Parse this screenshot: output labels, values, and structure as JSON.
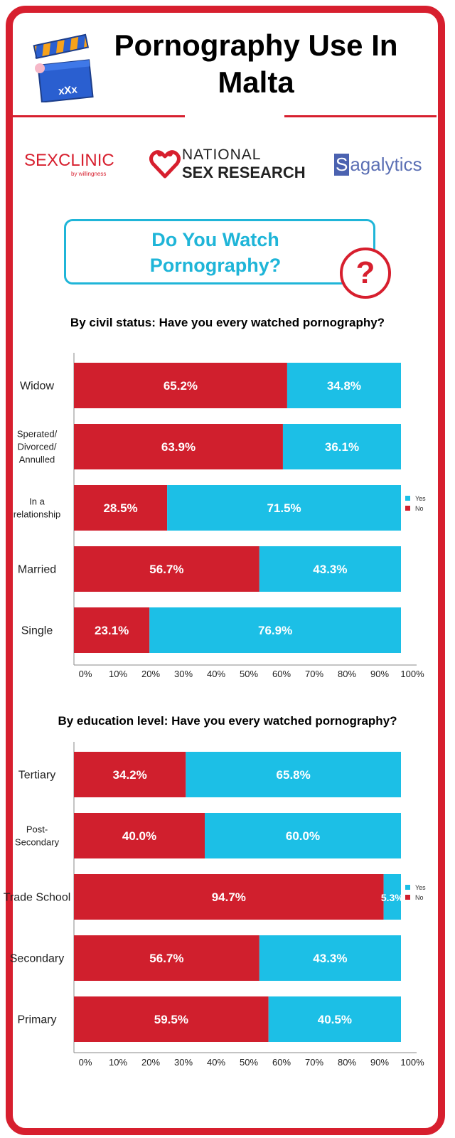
{
  "header": {
    "title_line1": "Pornography Use In",
    "title_line2": "Malta",
    "clapper_text": "xXx"
  },
  "logos": {
    "sexclinic": "SEXCLINIC",
    "sexclinic_by": "by willingness",
    "nsr_line1": "NATIONAL",
    "nsr_line2": "SEX RESEARCH",
    "sagalytics_s": "S",
    "sagalytics_rest": "agalytics"
  },
  "question": {
    "line1": "Do You Watch",
    "line2": "Pornography?",
    "mark": "?"
  },
  "colors": {
    "no": "#d01f2d",
    "yes": "#1cbfe6",
    "accent": "#d71f2e",
    "question": "#1fb5d8"
  },
  "chart_data": [
    {
      "type": "bar",
      "orientation": "horizontal",
      "stacked": true,
      "title": "By civil status: Have you every watched pornography?",
      "categories": [
        "Widow",
        "Sperated/ Divorced/ Annulled",
        "In a relationship",
        "Married",
        "Single"
      ],
      "series": [
        {
          "name": "No",
          "values": [
            65.2,
            63.9,
            28.5,
            56.7,
            23.1
          ],
          "labels": [
            "65.2%",
            "63.9%",
            "28.5%",
            "56.7%",
            "23.1%"
          ]
        },
        {
          "name": "Yes",
          "values": [
            34.8,
            36.1,
            71.5,
            43.3,
            76.9
          ],
          "labels": [
            "34.8%",
            "36.1%",
            "71.5%",
            "43.3%",
            "76.9%"
          ]
        }
      ],
      "xticks": [
        "0%",
        "10%",
        "20%",
        "30%",
        "40%",
        "50%",
        "60%",
        "70%",
        "80%",
        "90%",
        "100%"
      ],
      "xlim": [
        0,
        100
      ],
      "legend": [
        "Yes",
        "No"
      ],
      "legend_position": "right"
    },
    {
      "type": "bar",
      "orientation": "horizontal",
      "stacked": true,
      "title": "By education level: Have you every watched pornography?",
      "categories": [
        "Tertiary",
        "Post- Secondary",
        "Trade School",
        "Secondary",
        "Primary"
      ],
      "series": [
        {
          "name": "No",
          "values": [
            34.2,
            40.0,
            94.7,
            56.7,
            59.5
          ],
          "labels": [
            "34.2%",
            "40.0%",
            "94.7%",
            "56.7%",
            "59.5%"
          ]
        },
        {
          "name": "Yes",
          "values": [
            65.8,
            60.0,
            5.3,
            43.3,
            40.5
          ],
          "labels": [
            "65.8%",
            "60.0%",
            "5.3%",
            "43.3%",
            "40.5%"
          ]
        }
      ],
      "xticks": [
        "0%",
        "10%",
        "20%",
        "30%",
        "40%",
        "50%",
        "60%",
        "70%",
        "80%",
        "90%",
        "100%"
      ],
      "xlim": [
        0,
        100
      ],
      "legend": [
        "Yes",
        "No"
      ],
      "legend_position": "right"
    }
  ]
}
